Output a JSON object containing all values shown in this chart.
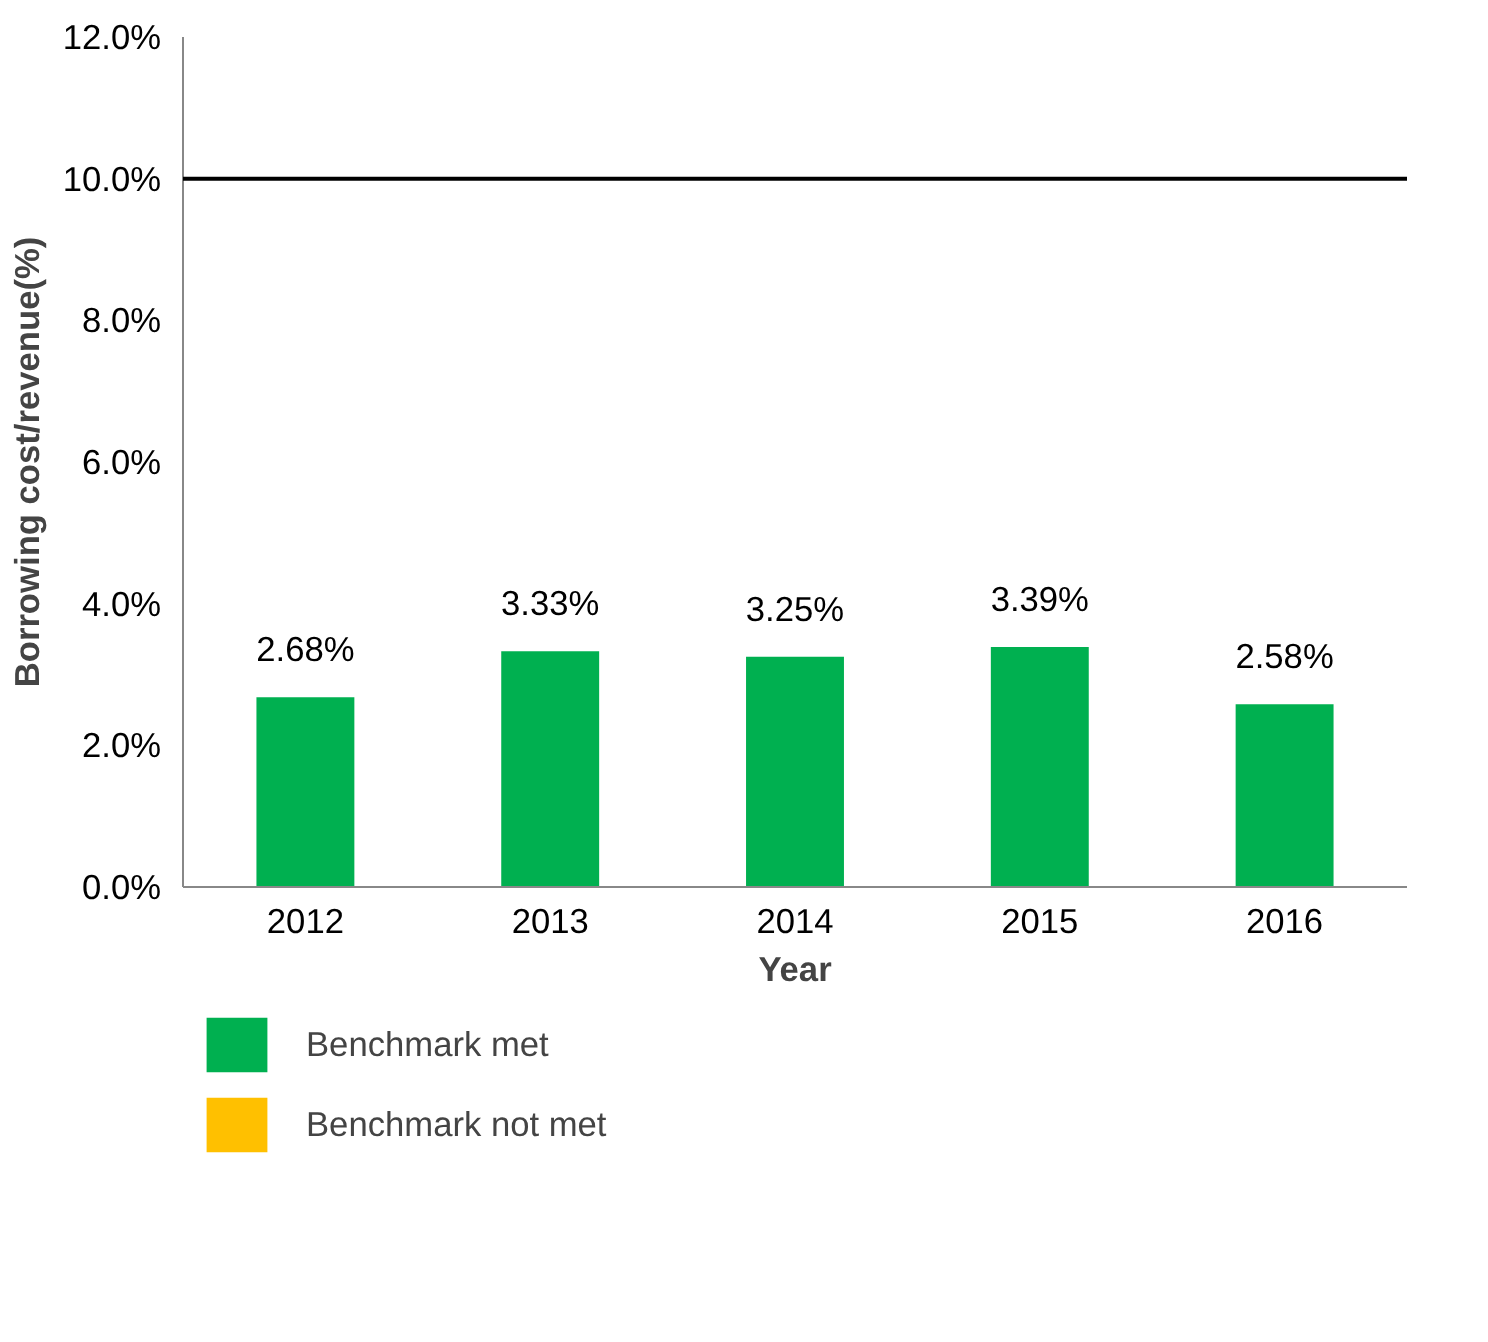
{
  "chart_data": {
    "type": "bar",
    "xlabel": "Year",
    "ylabel": "Borrowing cost/revenue(%)",
    "categories": [
      "2012",
      "2013",
      "2014",
      "2015",
      "2016"
    ],
    "series": [
      {
        "name": "Benchmark met",
        "color": "#00b050",
        "values": [
          2.68,
          3.33,
          3.25,
          3.39,
          2.58
        ],
        "value_labels": [
          "2.68%",
          "3.33%",
          "3.25%",
          "3.39%",
          "2.58%"
        ]
      },
      {
        "name": "Benchmark not met",
        "color": "#ffc000",
        "values": [
          null,
          null,
          null,
          null,
          null
        ]
      }
    ],
    "ylim": [
      0,
      12
    ],
    "yticks": [
      {
        "value": 0,
        "label": "0.0%"
      },
      {
        "value": 2,
        "label": "2.0%"
      },
      {
        "value": 4,
        "label": "4.0%"
      },
      {
        "value": 6,
        "label": "6.0%"
      },
      {
        "value": 8,
        "label": "8.0%"
      },
      {
        "value": 10,
        "label": "10.0%"
      },
      {
        "value": 12,
        "label": "12.0%"
      }
    ],
    "ref_lines": [
      {
        "axis": "y",
        "value": 10,
        "color": "#000000"
      }
    ],
    "grid": false,
    "legend": "bottom left"
  }
}
